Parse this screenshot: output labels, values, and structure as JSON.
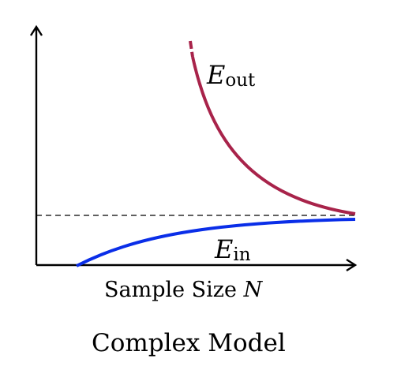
{
  "chart_data": {
    "type": "line",
    "title": "Complex Model",
    "xlabel": {
      "text": "Sample Size ",
      "var": "N"
    },
    "ylabel": "",
    "asymptote": {
      "style": "dashed",
      "color": "#000000"
    },
    "series": [
      {
        "name": "E",
        "subscript": "out",
        "color": "#A8234A",
        "style": "solid with dashed start",
        "note": "decreasing convergence curve approaching asymptote from above"
      },
      {
        "name": "E",
        "subscript": "in",
        "color": "#0A2EE8",
        "style": "solid",
        "note": "increasing convergence curve approaching asymptote from below"
      }
    ],
    "grid": false,
    "ticks": false
  }
}
